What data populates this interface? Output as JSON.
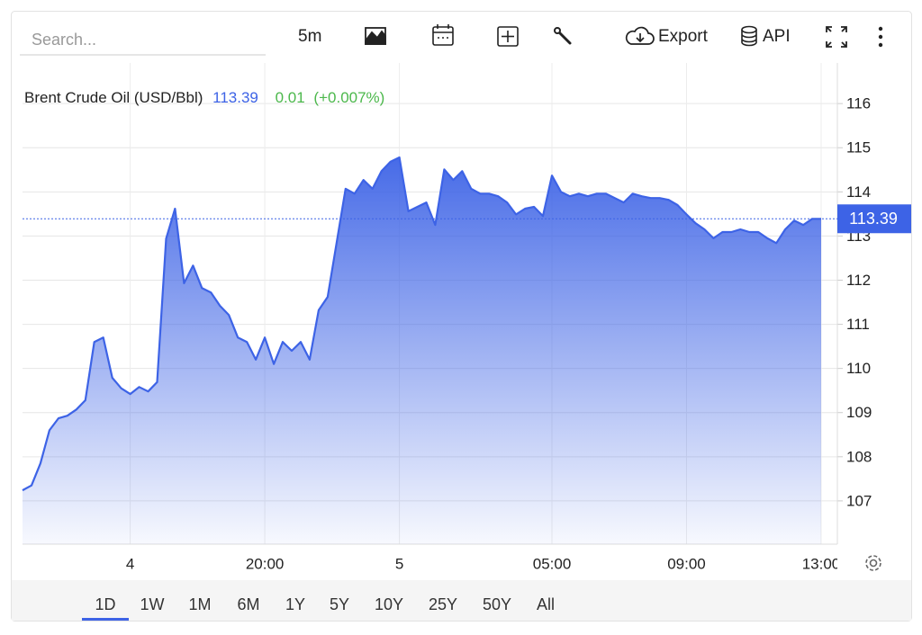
{
  "toolbar": {
    "search_placeholder": "Search...",
    "interval": "5m",
    "export": "Export",
    "api": "API"
  },
  "chart_data": {
    "type": "area",
    "title": "Brent Crude Oil (USD/Bbl)",
    "price": 113.39,
    "change": 0.01,
    "change_pct": "(+0.007%)",
    "color": "#3d63e6",
    "grid": true,
    "categories": [
      null,
      null,
      null,
      null,
      null,
      null,
      null,
      null,
      null,
      null,
      null,
      null,
      "4",
      null,
      null,
      null,
      null,
      null,
      null,
      null,
      null,
      null,
      null,
      null,
      null,
      null,
      null,
      "20:00",
      null,
      null,
      null,
      null,
      null,
      null,
      null,
      null,
      null,
      null,
      null,
      null,
      null,
      null,
      "5",
      null,
      null,
      null,
      null,
      null,
      null,
      null,
      null,
      null,
      null,
      null,
      null,
      null,
      null,
      null,
      null,
      "05:00",
      null,
      null,
      null,
      null,
      null,
      null,
      null,
      null,
      null,
      null,
      null,
      null,
      null,
      null,
      "09:00",
      null,
      null,
      null,
      null,
      null,
      null,
      null,
      null,
      null,
      null,
      null,
      null,
      null,
      null,
      "13:00"
    ],
    "values": [
      107.24,
      107.35,
      107.85,
      108.6,
      108.87,
      108.93,
      109.07,
      109.28,
      110.6,
      110.7,
      109.79,
      109.55,
      109.42,
      109.58,
      109.48,
      109.69,
      112.94,
      113.62,
      111.93,
      112.33,
      111.82,
      111.72,
      111.42,
      111.21,
      110.7,
      110.6,
      110.2,
      110.7,
      110.1,
      110.6,
      110.4,
      110.6,
      110.2,
      111.32,
      111.62,
      112.84,
      114.07,
      113.96,
      114.27,
      114.07,
      114.47,
      114.68,
      114.78,
      113.56,
      113.66,
      113.76,
      113.25,
      114.51,
      114.27,
      114.47,
      114.07,
      113.96,
      113.96,
      113.9,
      113.76,
      113.49,
      113.62,
      113.66,
      113.45,
      114.37,
      114.0,
      113.9,
      113.96,
      113.9,
      113.96,
      113.96,
      113.86,
      113.76,
      113.96,
      113.9,
      113.86,
      113.86,
      113.82,
      113.7,
      113.49,
      113.29,
      113.15,
      112.95,
      113.09,
      113.09,
      113.15,
      113.09,
      113.09,
      112.95,
      112.84,
      113.15,
      113.35,
      113.25,
      113.39,
      113.39
    ],
    "ylim": [
      106.02,
      116.92
    ],
    "yticks": [
      107,
      108,
      109,
      110,
      111,
      112,
      113,
      114,
      115,
      116
    ]
  },
  "ranges": [
    "1D",
    "1W",
    "1M",
    "6M",
    "1Y",
    "5Y",
    "10Y",
    "25Y",
    "50Y",
    "All"
  ],
  "selected_range": 0
}
